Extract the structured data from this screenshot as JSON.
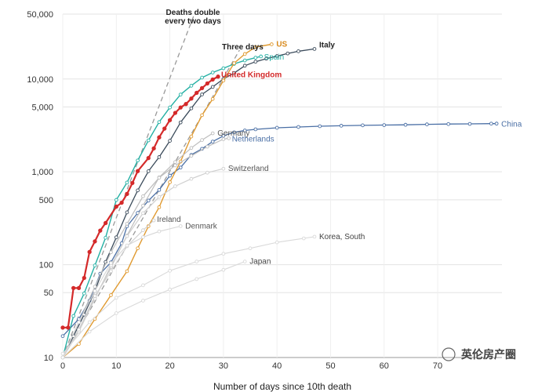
{
  "chart_data": {
    "type": "line",
    "xlabel": "Number of days since 10th death",
    "yscale": "log",
    "ylim": [
      10,
      50000
    ],
    "xlim": [
      0,
      82
    ],
    "yticks": [
      {
        "value": 10,
        "label": "10"
      },
      {
        "value": 50,
        "label": "50"
      },
      {
        "value": 100,
        "label": "100"
      },
      {
        "value": 500,
        "label": "500"
      },
      {
        "value": 1000,
        "label": "1,000"
      },
      {
        "value": 5000,
        "label": "5,000"
      },
      {
        "value": 10000,
        "label": "10,000"
      },
      {
        "value": 50000,
        "label": "50,000"
      }
    ],
    "xticks": [
      0,
      10,
      20,
      30,
      40,
      50,
      60,
      70
    ],
    "annotations": [
      {
        "text": "Deaths double",
        "kind": "reference",
        "x0": 0,
        "y0": 10,
        "x1": 26,
        "y1": 81920
      },
      {
        "text": "every two days"
      },
      {
        "text": "Three days",
        "kind": "reference",
        "x0": 0,
        "y0": 10,
        "x1": 33,
        "y1": 20480
      }
    ],
    "watermark": "英伦房产圈",
    "series": [
      {
        "name": "China",
        "color": "#4a6fa5",
        "width": 1.3,
        "label_color": "#4a6fa5",
        "bold": false,
        "show_points": true,
        "label_dx": 6,
        "label_dy": 4,
        "values": [
          [
            0,
            17
          ],
          [
            3,
            26
          ],
          [
            5,
            41
          ],
          [
            7,
            80
          ],
          [
            9,
            106
          ],
          [
            11,
            170
          ],
          [
            12,
            259
          ],
          [
            14,
            361
          ],
          [
            16,
            490
          ],
          [
            18,
            638
          ],
          [
            20,
            910
          ],
          [
            22,
            1113
          ],
          [
            24,
            1523
          ],
          [
            26,
            1770
          ],
          [
            28,
            2118
          ],
          [
            30,
            2442
          ],
          [
            32,
            2663
          ],
          [
            34,
            2788
          ],
          [
            36,
            2870
          ],
          [
            40,
            2981
          ],
          [
            44,
            3042
          ],
          [
            48,
            3099
          ],
          [
            52,
            3136
          ],
          [
            56,
            3169
          ],
          [
            60,
            3189
          ],
          [
            64,
            3213
          ],
          [
            68,
            3245
          ],
          [
            72,
            3270
          ],
          [
            76,
            3283
          ],
          [
            80,
            3305
          ],
          [
            81,
            3308
          ]
        ]
      },
      {
        "name": "Italy",
        "color": "#3a4a5a",
        "width": 1.3,
        "label_color": "#222",
        "bold": true,
        "show_points": true,
        "label_dx": 6,
        "label_dy": -2,
        "values": [
          [
            0,
            10
          ],
          [
            2,
            17
          ],
          [
            4,
            29
          ],
          [
            6,
            52
          ],
          [
            8,
            107
          ],
          [
            10,
            197
          ],
          [
            12,
            366
          ],
          [
            14,
            631
          ],
          [
            16,
            1016
          ],
          [
            18,
            1441
          ],
          [
            20,
            2158
          ],
          [
            22,
            3405
          ],
          [
            24,
            4825
          ],
          [
            26,
            6820
          ],
          [
            28,
            8215
          ],
          [
            30,
            10023
          ],
          [
            32,
            11591
          ],
          [
            34,
            13915
          ],
          [
            36,
            15362
          ],
          [
            38,
            16523
          ],
          [
            40,
            17669
          ],
          [
            42,
            18849
          ],
          [
            44,
            19899
          ],
          [
            47,
            21067
          ]
        ]
      },
      {
        "name": "Spain",
        "color": "#24b0a4",
        "width": 1.4,
        "label_color": "#24b0a4",
        "bold": false,
        "show_points": true,
        "label_dx": 4,
        "label_dy": 4,
        "values": [
          [
            0,
            10
          ],
          [
            2,
            28
          ],
          [
            4,
            49
          ],
          [
            6,
            98
          ],
          [
            8,
            195
          ],
          [
            10,
            498
          ],
          [
            12,
            767
          ],
          [
            14,
            1326
          ],
          [
            16,
            2182
          ],
          [
            18,
            3434
          ],
          [
            20,
            4934
          ],
          [
            22,
            6803
          ],
          [
            24,
            8464
          ],
          [
            26,
            10348
          ],
          [
            28,
            11744
          ],
          [
            30,
            13055
          ],
          [
            32,
            14555
          ],
          [
            34,
            15843
          ],
          [
            36,
            16972
          ],
          [
            37,
            17489
          ]
        ]
      },
      {
        "name": "US",
        "color": "#e09a30",
        "width": 1.4,
        "label_color": "#d88a1c",
        "bold": true,
        "show_points": true,
        "label_dx": 6,
        "label_dy": 3,
        "values": [
          [
            0,
            10
          ],
          [
            3,
            14
          ],
          [
            6,
            26
          ],
          [
            9,
            47
          ],
          [
            12,
            85
          ],
          [
            14,
            150
          ],
          [
            16,
            260
          ],
          [
            18,
            416
          ],
          [
            20,
            773
          ],
          [
            22,
            1289
          ],
          [
            24,
            2401
          ],
          [
            26,
            4076
          ],
          [
            28,
            6095
          ],
          [
            30,
            9618
          ],
          [
            32,
            14795
          ],
          [
            34,
            18586
          ],
          [
            36,
            22108
          ],
          [
            39,
            23644
          ]
        ]
      },
      {
        "name": "United Kingdom",
        "color": "#d42a2a",
        "width": 2.2,
        "label_color": "#d42a2a",
        "bold": true,
        "show_points": true,
        "label_dx": 4,
        "label_dy": 1,
        "values": [
          [
            0,
            21
          ],
          [
            1,
            21
          ],
          [
            2,
            56
          ],
          [
            3,
            56
          ],
          [
            4,
            72
          ],
          [
            5,
            137
          ],
          [
            6,
            178
          ],
          [
            7,
            233
          ],
          [
            8,
            281
          ],
          [
            10,
            422
          ],
          [
            11,
            465
          ],
          [
            12,
            578
          ],
          [
            13,
            759
          ],
          [
            14,
            1019
          ],
          [
            16,
            1408
          ],
          [
            17,
            1789
          ],
          [
            18,
            2352
          ],
          [
            19,
            2921
          ],
          [
            20,
            3605
          ],
          [
            21,
            4313
          ],
          [
            22,
            4934
          ],
          [
            23,
            5373
          ],
          [
            24,
            6159
          ],
          [
            25,
            7097
          ],
          [
            26,
            7978
          ],
          [
            27,
            8958
          ],
          [
            28,
            9875
          ],
          [
            29,
            10612
          ]
        ]
      },
      {
        "name": "Germany",
        "color": "#bdbdbd",
        "width": 1.2,
        "label_color": "#555",
        "bold": false,
        "show_points": true,
        "label_dx": 6,
        "label_dy": 3,
        "values": [
          [
            0,
            10
          ],
          [
            3,
            20
          ],
          [
            6,
            44
          ],
          [
            9,
            94
          ],
          [
            12,
            206
          ],
          [
            15,
            433
          ],
          [
            18,
            872
          ],
          [
            21,
            1275
          ],
          [
            24,
            1810
          ],
          [
            26,
            2200
          ],
          [
            28,
            2600
          ]
        ]
      },
      {
        "name": "Netherlands",
        "color": "#bdbdbd",
        "width": 1.2,
        "label_color": "#4a6fa5",
        "bold": false,
        "show_points": true,
        "label_dx": 4,
        "label_dy": 4,
        "values": [
          [
            0,
            10
          ],
          [
            3,
            24
          ],
          [
            6,
            58
          ],
          [
            9,
            136
          ],
          [
            12,
            276
          ],
          [
            15,
            546
          ],
          [
            18,
            864
          ],
          [
            21,
            1173
          ],
          [
            24,
            1487
          ],
          [
            27,
            1867
          ],
          [
            30,
            2248
          ],
          [
            31,
            2300
          ]
        ]
      },
      {
        "name": "Switzerland",
        "color": "#cfcfcf",
        "width": 1.2,
        "label_color": "#555",
        "bold": false,
        "show_points": true,
        "label_dx": 6,
        "label_dy": 3,
        "values": [
          [
            0,
            10
          ],
          [
            3,
            19
          ],
          [
            6,
            43
          ],
          [
            9,
            98
          ],
          [
            12,
            203
          ],
          [
            15,
            359
          ],
          [
            18,
            536
          ],
          [
            21,
            700
          ],
          [
            24,
            840
          ],
          [
            27,
            980
          ],
          [
            30,
            1080
          ]
        ]
      },
      {
        "name": "Ireland",
        "color": "#cfcfcf",
        "width": 1.1,
        "label_color": "#555",
        "bold": false,
        "show_points": true,
        "label_dx": 4,
        "label_dy": 2,
        "values": [
          [
            0,
            10
          ],
          [
            3,
            20
          ],
          [
            6,
            46
          ],
          [
            9,
            85
          ],
          [
            12,
            158
          ],
          [
            15,
            235
          ],
          [
            17,
            300
          ]
        ]
      },
      {
        "name": "Denmark",
        "color": "#d6d6d6",
        "width": 1.1,
        "label_color": "#555",
        "bold": false,
        "show_points": true,
        "label_dx": 6,
        "label_dy": 3,
        "values": [
          [
            0,
            10
          ],
          [
            3,
            24
          ],
          [
            6,
            52
          ],
          [
            9,
            104
          ],
          [
            12,
            161
          ],
          [
            15,
            198
          ],
          [
            18,
            228
          ],
          [
            22,
            260
          ]
        ]
      },
      {
        "name": "Korea, South",
        "color": "#d9d9d9",
        "width": 1.1,
        "label_color": "#444",
        "bold": false,
        "show_points": true,
        "label_dx": 6,
        "label_dy": 3,
        "values": [
          [
            0,
            11
          ],
          [
            5,
            24
          ],
          [
            10,
            44
          ],
          [
            15,
            60
          ],
          [
            20,
            86
          ],
          [
            25,
            108
          ],
          [
            30,
            131
          ],
          [
            35,
            150
          ],
          [
            40,
            174
          ],
          [
            45,
            192
          ],
          [
            47,
            200
          ]
        ]
      },
      {
        "name": "Japan",
        "color": "#d9d9d9",
        "width": 1.1,
        "label_color": "#444",
        "bold": false,
        "show_points": true,
        "label_dx": 6,
        "label_dy": 3,
        "values": [
          [
            0,
            10
          ],
          [
            5,
            19
          ],
          [
            10,
            30
          ],
          [
            15,
            41
          ],
          [
            20,
            54
          ],
          [
            25,
            70
          ],
          [
            30,
            88
          ],
          [
            34,
            108
          ]
        ]
      }
    ]
  }
}
